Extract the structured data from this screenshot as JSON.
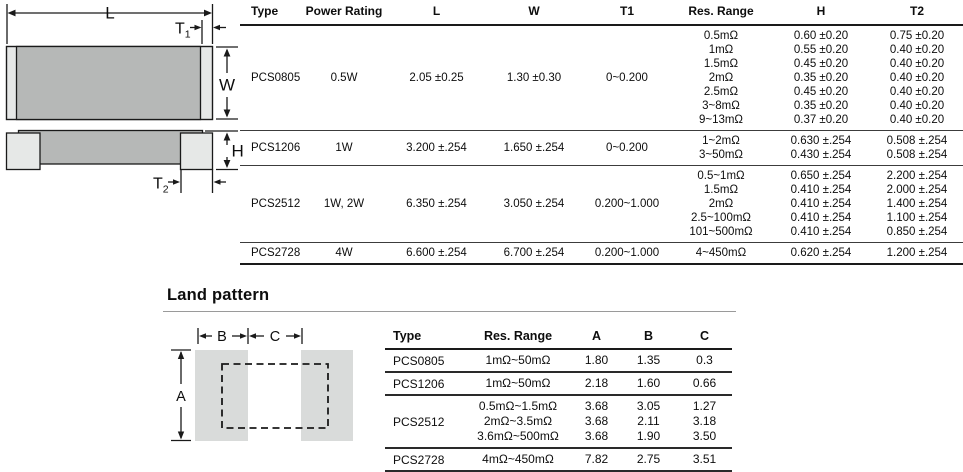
{
  "chip_diagram": {
    "labels": {
      "length": "L",
      "t1_main": "T",
      "t1_sub": "1",
      "width": "W",
      "height": "H",
      "t2_main": "T",
      "t2_sub": "2"
    }
  },
  "dimensions_table": {
    "headers": [
      "Type",
      "Power Rating",
      "L",
      "W",
      "T1",
      "Res. Range",
      "H",
      "T2"
    ],
    "rows": [
      {
        "type": "PCS0805",
        "power_rating": "0.5W",
        "l": "2.05 ±0.25",
        "w": "1.30 ±0.30",
        "t1": "0~0.200",
        "variants": [
          {
            "res_range": "0.5mΩ",
            "h": "0.60 ±0.20",
            "t2": "0.75 ±0.20"
          },
          {
            "res_range": "1mΩ",
            "h": "0.55 ±0.20",
            "t2": "0.40 ±0.20"
          },
          {
            "res_range": "1.5mΩ",
            "h": "0.45 ±0.20",
            "t2": "0.40 ±0.20"
          },
          {
            "res_range": "2mΩ",
            "h": "0.35 ±0.20",
            "t2": "0.40 ±0.20"
          },
          {
            "res_range": "2.5mΩ",
            "h": "0.45 ±0.20",
            "t2": "0.40 ±0.20"
          },
          {
            "res_range": "3~8mΩ",
            "h": "0.35 ±0.20",
            "t2": "0.40 ±0.20"
          },
          {
            "res_range": "9~13mΩ",
            "h": "0.37 ±0.20",
            "t2": "0.40 ±0.20"
          }
        ]
      },
      {
        "type": "PCS1206",
        "power_rating": "1W",
        "l": "3.200 ±.254",
        "w": "1.650 ±.254",
        "t1": "0~0.200",
        "variants": [
          {
            "res_range": "1~2mΩ",
            "h": "0.630 ±.254",
            "t2": "0.508 ±.254"
          },
          {
            "res_range": "3~50mΩ",
            "h": "0.430 ±.254",
            "t2": "0.508 ±.254"
          }
        ]
      },
      {
        "type": "PCS2512",
        "power_rating": "1W, 2W",
        "l": "6.350 ±.254",
        "w": "3.050 ±.254",
        "t1": "0.200~1.000",
        "variants": [
          {
            "res_range": "0.5~1mΩ",
            "h": "0.650 ±.254",
            "t2": "2.200 ±.254"
          },
          {
            "res_range": "1.5mΩ",
            "h": "0.410 ±.254",
            "t2": "2.000 ±.254"
          },
          {
            "res_range": "2mΩ",
            "h": "0.410 ±.254",
            "t2": "1.400 ±.254"
          },
          {
            "res_range": "2.5~100mΩ",
            "h": "0.410 ±.254",
            "t2": "1.100 ±.254"
          },
          {
            "res_range": "101~500mΩ",
            "h": "0.410 ±.254",
            "t2": "0.850 ±.254"
          }
        ]
      },
      {
        "type": "PCS2728",
        "power_rating": "4W",
        "l": "6.600 ±.254",
        "w": "6.700 ±.254",
        "t1": "0.200~1.000",
        "variants": [
          {
            "res_range": "4~450mΩ",
            "h": "0.620 ±.254",
            "t2": "1.200 ±.254"
          }
        ]
      }
    ]
  },
  "land_pattern": {
    "heading": "Land pattern",
    "diagram_labels": {
      "a": "A",
      "b": "B",
      "c": "C"
    },
    "table": {
      "headers": [
        "Type",
        "Res. Range",
        "A",
        "B",
        "C"
      ],
      "rows": [
        {
          "type": "PCS0805",
          "variants": [
            {
              "res_range": "1mΩ~50mΩ",
              "a": "1.80",
              "b": "1.35",
              "c": "0.3"
            }
          ]
        },
        {
          "type": "PCS1206",
          "variants": [
            {
              "res_range": "1mΩ~50mΩ",
              "a": "2.18",
              "b": "1.60",
              "c": "0.66"
            }
          ]
        },
        {
          "type": "PCS2512",
          "variants": [
            {
              "res_range": "0.5mΩ~1.5mΩ",
              "a": "3.68",
              "b": "3.05",
              "c": "1.27"
            },
            {
              "res_range": "2mΩ~3.5mΩ",
              "a": "3.68",
              "b": "2.11",
              "c": "3.18"
            },
            {
              "res_range": "3.6mΩ~500mΩ",
              "a": "3.68",
              "b": "1.90",
              "c": "3.50"
            }
          ]
        },
        {
          "type": "PCS2728",
          "variants": [
            {
              "res_range": "4mΩ~450mΩ",
              "a": "7.82",
              "b": "2.75",
              "c": "3.51"
            }
          ]
        }
      ]
    }
  },
  "colors": {
    "chip_body": "#b6b8b7",
    "chip_terminal": "#e6e8e7",
    "land_pad": "#d9dbda",
    "rule_dark": "#1a1a1a",
    "rule_gray": "#9a9a9a"
  }
}
